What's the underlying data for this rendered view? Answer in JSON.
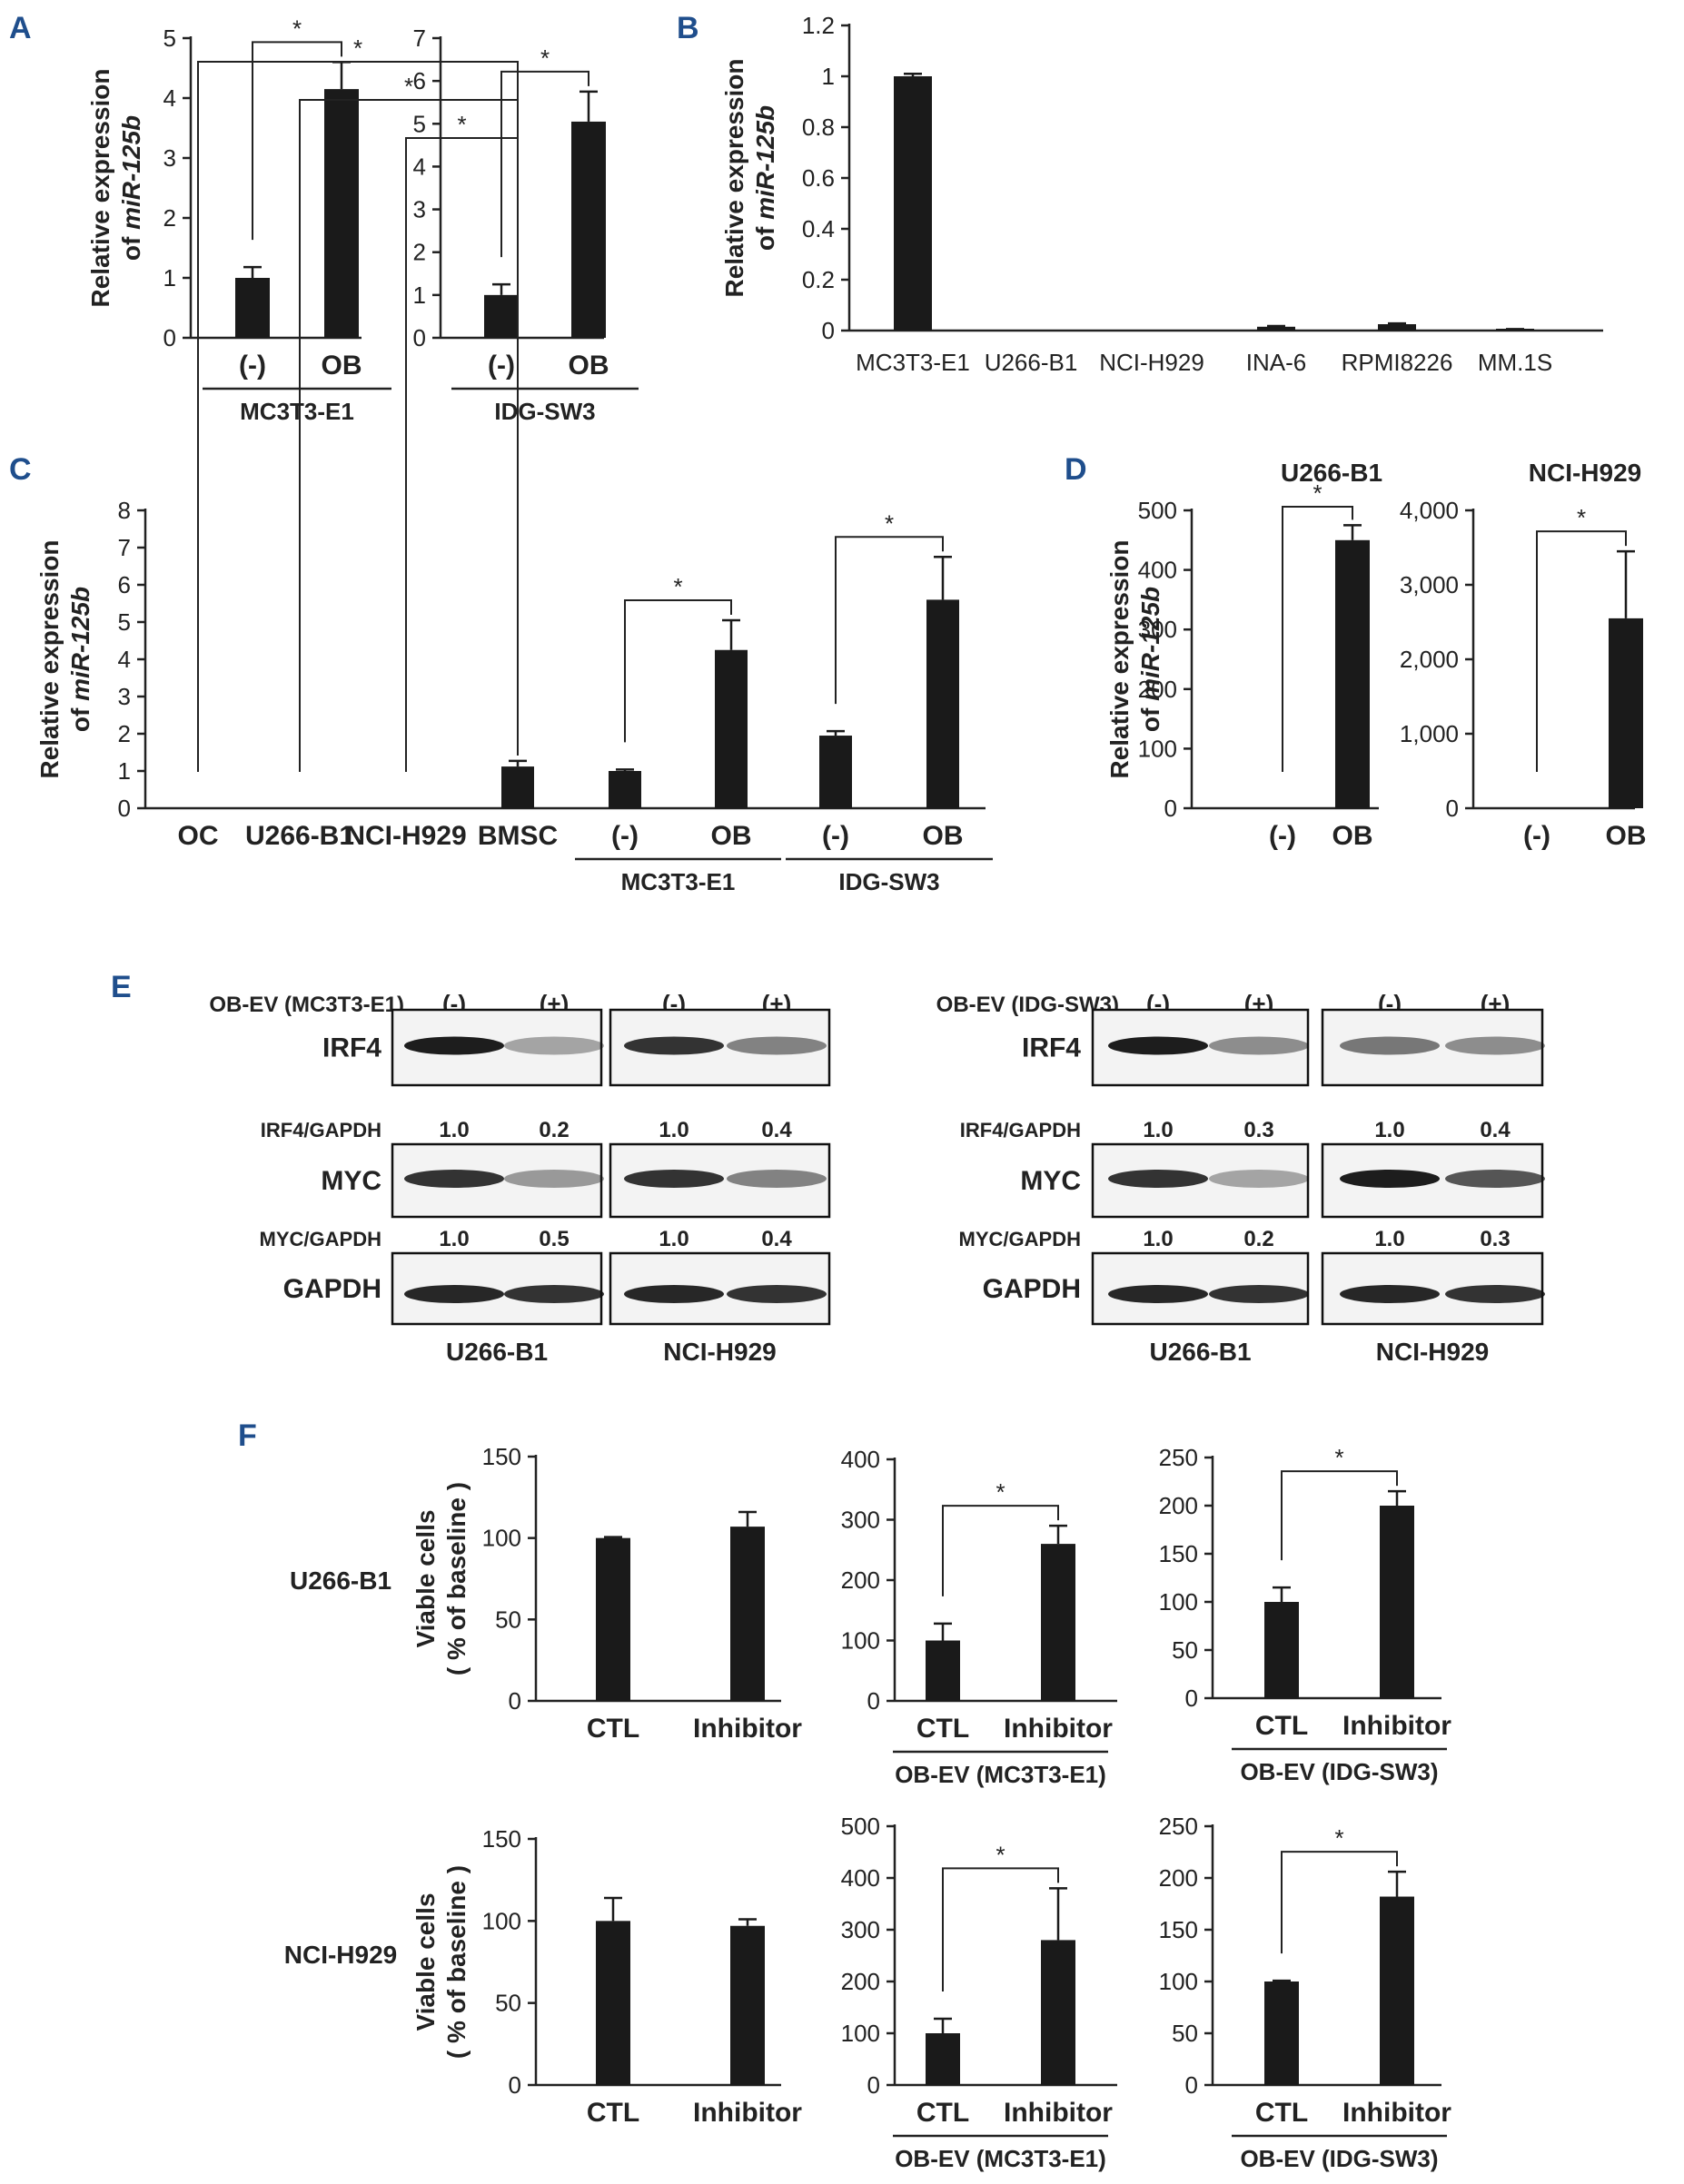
{
  "panel_letters": [
    "A",
    "B",
    "C",
    "D",
    "E",
    "F"
  ],
  "chart_data": [
    {
      "id": "A1",
      "panel": "A",
      "type": "bar",
      "ylabel": "Relative expression",
      "ylabel2_prefix": "of ",
      "ylabel2_gene": "miR-125b",
      "ylim": [
        0,
        5
      ],
      "yticks": [
        "0",
        "1",
        "2",
        "3",
        "4",
        "5"
      ],
      "categories": [
        "(-)",
        "OB"
      ],
      "values": [
        1.0,
        4.15
      ],
      "errors": [
        0.18,
        0.45
      ],
      "group_labels": [
        {
          "label": "MC3T3-E1",
          "span": [
            0,
            1
          ]
        }
      ],
      "significance": [
        {
          "between": [
            0,
            1
          ],
          "label": "*"
        }
      ]
    },
    {
      "id": "A2",
      "panel": "A",
      "type": "bar",
      "ylim": [
        0,
        7
      ],
      "yticks": [
        "0",
        "1",
        "2",
        "3",
        "4",
        "5",
        "6",
        "7"
      ],
      "categories": [
        "(-)",
        "OB"
      ],
      "values": [
        1.0,
        5.05
      ],
      "errors": [
        0.25,
        0.7
      ],
      "group_labels": [
        {
          "label": "IDG-SW3",
          "span": [
            0,
            1
          ]
        }
      ],
      "significance": [
        {
          "between": [
            0,
            1
          ],
          "label": "*"
        }
      ]
    },
    {
      "id": "B",
      "panel": "B",
      "type": "bar",
      "ylabel": "Relative expression",
      "ylabel2_prefix": "of ",
      "ylabel2_gene": "miR-125b",
      "ylim": [
        0,
        1.2
      ],
      "yticks": [
        "0",
        "0.2",
        "0.4",
        "0.6",
        "0.8",
        "1",
        "1.2"
      ],
      "categories": [
        "MC3T3-E1",
        "U266-B1",
        "NCI-H929",
        "INA-6",
        "RPMI8226",
        "MM.1S"
      ],
      "values": [
        1.0,
        0.0,
        0.0,
        0.015,
        0.025,
        0.005
      ],
      "errors": [
        0.01,
        0,
        0,
        0.003,
        0.003,
        0.001
      ]
    },
    {
      "id": "C",
      "panel": "C",
      "type": "bar",
      "ylabel": "Relative expression",
      "ylabel2_prefix": "of ",
      "ylabel2_gene": "miR-125b",
      "ylim": [
        0,
        8
      ],
      "yticks": [
        "0",
        "1",
        "2",
        "3",
        "4",
        "5",
        "6",
        "7",
        "8"
      ],
      "categories": [
        "OC",
        "U266-B1",
        "NCI-H929",
        "BMSC",
        "(-)",
        "OB",
        "(-)",
        "OB"
      ],
      "values": [
        0.0,
        0.0,
        0.0,
        1.12,
        1.0,
        4.25,
        1.95,
        5.6
      ],
      "errors": [
        0,
        0,
        0,
        0.15,
        0.04,
        0.8,
        0.12,
        1.15
      ],
      "group_labels": [
        {
          "label": "MC3T3-E1",
          "span": [
            4,
            5
          ]
        },
        {
          "label": "IDG-SW3",
          "span": [
            6,
            7
          ]
        }
      ],
      "significance": [
        {
          "between": [
            2,
            3
          ],
          "label": "*"
        },
        {
          "between": [
            1,
            3
          ],
          "label": "*"
        },
        {
          "between": [
            0,
            3
          ],
          "label": "*"
        },
        {
          "between": [
            4,
            5
          ],
          "label": "*"
        },
        {
          "between": [
            6,
            7
          ],
          "label": "*"
        }
      ]
    },
    {
      "id": "D1",
      "panel": "D",
      "type": "bar",
      "title": "U266-B1",
      "ylabel": "Relative expression",
      "ylabel2_prefix": "of ",
      "ylabel2_gene": "miR-125b",
      "ylim": [
        0,
        500
      ],
      "yticks": [
        "0",
        "100",
        "200",
        "300",
        "400",
        "500"
      ],
      "categories": [
        "(-)",
        "OB"
      ],
      "values": [
        0.0,
        450
      ],
      "errors": [
        0,
        25
      ],
      "significance": [
        {
          "between": [
            0,
            1
          ],
          "label": "*"
        }
      ]
    },
    {
      "id": "D2",
      "panel": "D",
      "type": "bar",
      "title": "NCI-H929",
      "ylim": [
        0,
        4000
      ],
      "yticks": [
        "0",
        "1,000",
        "2,000",
        "3,000",
        "4,000"
      ],
      "categories": [
        "(-)",
        "OB"
      ],
      "values": [
        0.0,
        2550
      ],
      "errors": [
        0,
        900
      ],
      "significance": [
        {
          "between": [
            0,
            1
          ],
          "label": "*"
        }
      ]
    },
    {
      "id": "F1",
      "panel": "F",
      "type": "bar",
      "row_label": "U266-B1",
      "ylabel": "Viable cells",
      "ylabel2": "( % of baseline )",
      "ylim": [
        0,
        150
      ],
      "yticks": [
        "0",
        "50",
        "100",
        "150"
      ],
      "categories": [
        "CTL",
        "Inhibitor"
      ],
      "values": [
        100,
        107
      ],
      "errors": [
        0.6,
        9
      ]
    },
    {
      "id": "F2",
      "panel": "F",
      "type": "bar",
      "ylim": [
        0,
        400
      ],
      "yticks": [
        "0",
        "100",
        "200",
        "300",
        "400"
      ],
      "categories": [
        "CTL",
        "Inhibitor"
      ],
      "values": [
        100,
        260
      ],
      "errors": [
        28,
        30
      ],
      "group_labels": [
        {
          "label": "OB-EV (MC3T3-E1)",
          "span": [
            0,
            1
          ]
        }
      ],
      "significance": [
        {
          "between": [
            0,
            1
          ],
          "label": "*"
        }
      ]
    },
    {
      "id": "F3",
      "panel": "F",
      "type": "bar",
      "ylim": [
        0,
        250
      ],
      "yticks": [
        "0",
        "50",
        "100",
        "150",
        "200",
        "250"
      ],
      "categories": [
        "CTL",
        "Inhibitor"
      ],
      "values": [
        100,
        200
      ],
      "errors": [
        15,
        15
      ],
      "group_labels": [
        {
          "label": "OB-EV (IDG-SW3)",
          "span": [
            0,
            1
          ]
        }
      ],
      "significance": [
        {
          "between": [
            0,
            1
          ],
          "label": "*"
        }
      ]
    },
    {
      "id": "F4",
      "panel": "F",
      "type": "bar",
      "row_label": "NCI-H929",
      "ylabel": "Viable cells",
      "ylabel2": "( % of baseline )",
      "ylim": [
        0,
        150
      ],
      "yticks": [
        "0",
        "50",
        "100",
        "150"
      ],
      "categories": [
        "CTL",
        "Inhibitor"
      ],
      "values": [
        100,
        97
      ],
      "errors": [
        14,
        4
      ]
    },
    {
      "id": "F5",
      "panel": "F",
      "type": "bar",
      "ylim": [
        0,
        500
      ],
      "yticks": [
        "0",
        "100",
        "200",
        "300",
        "400",
        "500"
      ],
      "categories": [
        "CTL",
        "Inhibitor"
      ],
      "values": [
        100,
        280
      ],
      "errors": [
        28,
        100
      ],
      "group_labels": [
        {
          "label": "OB-EV (MC3T3-E1)",
          "span": [
            0,
            1
          ]
        }
      ],
      "significance": [
        {
          "between": [
            0,
            1
          ],
          "label": "*"
        }
      ]
    },
    {
      "id": "F6",
      "panel": "F",
      "type": "bar",
      "ylim": [
        0,
        250
      ],
      "yticks": [
        "0",
        "50",
        "100",
        "150",
        "200",
        "250"
      ],
      "categories": [
        "CTL",
        "Inhibitor"
      ],
      "values": [
        100,
        182
      ],
      "errors": [
        0.8,
        24
      ],
      "group_labels": [
        {
          "label": "OB-EV (IDG-SW3)",
          "span": [
            0,
            1
          ]
        }
      ],
      "significance": [
        {
          "between": [
            0,
            1
          ],
          "label": "*"
        }
      ]
    }
  ],
  "western_blots": [
    {
      "id": "wb-left",
      "condition_label": "OB-EV (MC3T3-E1)",
      "signs": [
        "(-)",
        "(+)",
        "(-)",
        "(+)"
      ],
      "cell_lines": [
        "U266-B1",
        "NCI-H929"
      ],
      "proteins": [
        {
          "name": "IRF4",
          "ratio_label": "IRF4/GAPDH",
          "ratios": [
            "1.0",
            "0.2",
            "1.0",
            "0.4"
          ]
        },
        {
          "name": "MYC",
          "ratio_label": "MYC/GAPDH",
          "ratios": [
            "1.0",
            "0.5",
            "1.0",
            "0.4"
          ]
        },
        {
          "name": "GAPDH"
        }
      ]
    },
    {
      "id": "wb-right",
      "condition_label": "OB-EV (IDG-SW3)",
      "signs": [
        "(-)",
        "(+)",
        "(-)",
        "(+)"
      ],
      "cell_lines": [
        "U266-B1",
        "NCI-H929"
      ],
      "proteins": [
        {
          "name": "IRF4",
          "ratio_label": "IRF4/GAPDH",
          "ratios": [
            "1.0",
            "0.3",
            "1.0",
            "0.4"
          ]
        },
        {
          "name": "MYC",
          "ratio_label": "MYC/GAPDH",
          "ratios": [
            "1.0",
            "0.2",
            "1.0",
            "0.3"
          ]
        },
        {
          "name": "GAPDH"
        }
      ]
    }
  ]
}
